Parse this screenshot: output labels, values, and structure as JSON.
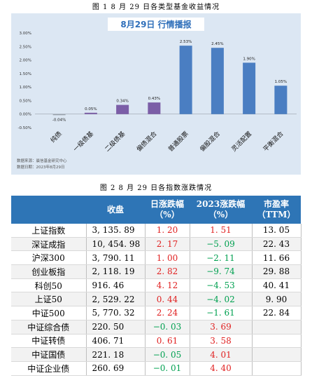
{
  "figure1_caption": "图 1   8 月 29 日各类型基金收益情况",
  "figure2_caption": "图 2   8 月 29 日各指数涨跌情况",
  "chart_data": {
    "type": "bar",
    "title": "8月29日  行情播报",
    "categories": [
      "纯债",
      "一级债基",
      "二级债基",
      "偏债混合",
      "普通股票",
      "偏股混合",
      "灵活配置",
      "平衡混合"
    ],
    "values": [
      -0.04,
      0.05,
      0.34,
      0.43,
      2.53,
      2.45,
      1.9,
      1.05
    ],
    "value_labels": [
      "-0.04%",
      "0.05%",
      "0.34%",
      "0.43%",
      "2.53%",
      "2.45%",
      "1.90%",
      "1.05%"
    ],
    "ylim": [
      -0.5,
      3.0
    ],
    "yticks": [
      "3.00%",
      "2.50%",
      "2.00%",
      "1.50%",
      "1.00%",
      "0.50%",
      "0.00%",
      "-0.50%"
    ],
    "ytick_values": [
      3.0,
      2.5,
      2.0,
      1.5,
      1.0,
      0.5,
      0.0,
      -0.5
    ],
    "grid": false,
    "colors": {
      "gray": "#9aa3ad",
      "purple": "#7b5ea7",
      "blue": "#4a7ec2",
      "title": "#2f6fba",
      "panel": "#dce7f3"
    },
    "bar_colors": [
      "gray",
      "purple",
      "purple",
      "purple",
      "blue",
      "blue",
      "blue",
      "blue"
    ]
  },
  "source_lines": [
    "数据来源：晨信基金研究中心",
    "数据日期：2023年8月29日"
  ],
  "table": {
    "headers": [
      "",
      "收盘",
      "日涨跌幅\n（%）",
      "2023涨跌幅\n（%）",
      "市盈率\n（TTM）"
    ],
    "rows": [
      {
        "name": "上证指数",
        "close": "3, 135. 89",
        "day": "1. 20",
        "ytd": "1. 51",
        "pe": "13. 05",
        "day_sign": "pos",
        "ytd_sign": "pos"
      },
      {
        "name": "深证成指",
        "close": "10, 454. 98",
        "day": "2. 17",
        "ytd": "−5. 09",
        "pe": "22. 43",
        "day_sign": "pos",
        "ytd_sign": "neg"
      },
      {
        "name": "沪深300",
        "close": "3, 790. 11",
        "day": "1. 00",
        "ytd": "−2. 11",
        "pe": "11. 66",
        "day_sign": "pos",
        "ytd_sign": "neg"
      },
      {
        "name": "创业板指",
        "close": "2, 118. 19",
        "day": "2. 82",
        "ytd": "−9. 74",
        "pe": "29. 88",
        "day_sign": "pos",
        "ytd_sign": "neg"
      },
      {
        "name": "科创50",
        "close": "916. 46",
        "day": "4. 12",
        "ytd": "−4. 53",
        "pe": "40. 41",
        "day_sign": "pos",
        "ytd_sign": "neg"
      },
      {
        "name": "上证50",
        "close": "2, 529. 22",
        "day": "0. 44",
        "ytd": "−4. 02",
        "pe": "9. 90",
        "day_sign": "pos",
        "ytd_sign": "neg"
      },
      {
        "name": "中证500",
        "close": "5, 770. 32",
        "day": "2. 24",
        "ytd": "−1. 61",
        "pe": "22. 84",
        "day_sign": "pos",
        "ytd_sign": "neg"
      },
      {
        "name": "中证综合债",
        "close": "220. 50",
        "day": "−0. 03",
        "ytd": "3. 69",
        "pe": "",
        "day_sign": "neg",
        "ytd_sign": "pos"
      },
      {
        "name": "中证转债",
        "close": "406. 71",
        "day": "0. 61",
        "ytd": "3. 58",
        "pe": "",
        "day_sign": "pos",
        "ytd_sign": "pos"
      },
      {
        "name": "中证国债",
        "close": "221. 18",
        "day": "−0. 05",
        "ytd": "4. 01",
        "pe": "",
        "day_sign": "neg",
        "ytd_sign": "pos"
      },
      {
        "name": "中证企业债",
        "close": "260. 69",
        "day": "−0. 01",
        "ytd": "4. 40",
        "pe": "",
        "day_sign": "neg",
        "ytd_sign": "pos"
      }
    ]
  }
}
